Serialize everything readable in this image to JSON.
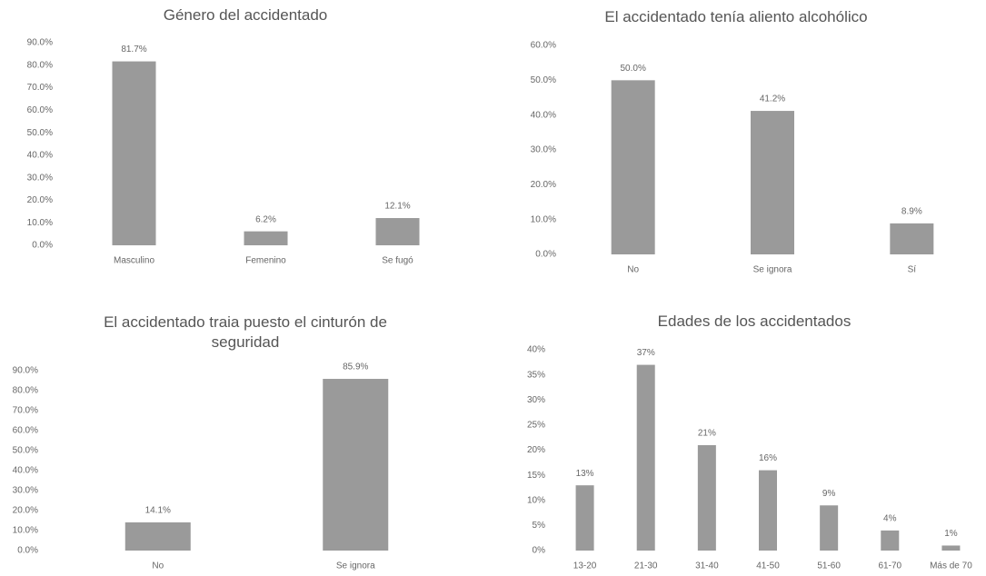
{
  "chart_data": [
    {
      "type": "bar",
      "title": "Género del accidentado",
      "categories": [
        "Masculino",
        "Femenino",
        "Se fugó"
      ],
      "values": [
        81.7,
        6.2,
        12.1
      ],
      "value_labels": [
        "81.7%",
        "6.2%",
        "12.1%"
      ],
      "color": "#9a9a9a",
      "ylim": [
        0,
        90
      ],
      "yticks": [
        {
          "value": 0,
          "label": "0.0%"
        },
        {
          "value": 10,
          "label": "10.0%"
        },
        {
          "value": 20,
          "label": "20.0%"
        },
        {
          "value": 30,
          "label": "30.0%"
        },
        {
          "value": 40,
          "label": "40.0%"
        },
        {
          "value": 50,
          "label": "50.0%"
        },
        {
          "value": 60,
          "label": "60.0%"
        },
        {
          "value": 70,
          "label": "70.0%"
        },
        {
          "value": 80,
          "label": "80.0%"
        },
        {
          "value": 90,
          "label": "90.0%"
        }
      ]
    },
    {
      "type": "bar",
      "title": "El accidentado tenía aliento alcohólico",
      "categories": [
        "No",
        "Se ignora",
        "Sí"
      ],
      "values": [
        50.0,
        41.2,
        8.9
      ],
      "value_labels": [
        "50.0%",
        "41.2%",
        "8.9%"
      ],
      "color": "#9a9a9a",
      "ylim": [
        0,
        60
      ],
      "yticks": [
        {
          "value": 0,
          "label": "0.0%"
        },
        {
          "value": 10,
          "label": "10.0%"
        },
        {
          "value": 20,
          "label": "20.0%"
        },
        {
          "value": 30,
          "label": "30.0%"
        },
        {
          "value": 40,
          "label": "40.0%"
        },
        {
          "value": 50,
          "label": "50.0%"
        },
        {
          "value": 60,
          "label": "60.0%"
        }
      ]
    },
    {
      "type": "bar",
      "title": "El accidentado traia puesto el cinturón de seguridad",
      "categories": [
        "No",
        "Se ignora"
      ],
      "values": [
        14.1,
        85.9
      ],
      "value_labels": [
        "14.1%",
        "85.9%"
      ],
      "color": "#9a9a9a",
      "ylim": [
        0,
        90
      ],
      "yticks": [
        {
          "value": 0,
          "label": "0.0%"
        },
        {
          "value": 10,
          "label": "10.0%"
        },
        {
          "value": 20,
          "label": "20.0%"
        },
        {
          "value": 30,
          "label": "30.0%"
        },
        {
          "value": 40,
          "label": "40.0%"
        },
        {
          "value": 50,
          "label": "50.0%"
        },
        {
          "value": 60,
          "label": "60.0%"
        },
        {
          "value": 70,
          "label": "70.0%"
        },
        {
          "value": 80,
          "label": "80.0%"
        },
        {
          "value": 90,
          "label": "90.0%"
        }
      ]
    },
    {
      "type": "bar",
      "title": "Edades de los accidentados",
      "categories": [
        "13-20",
        "21-30",
        "31-40",
        "41-50",
        "51-60",
        "61-70",
        "Más de 70"
      ],
      "values": [
        13,
        37,
        21,
        16,
        9,
        4,
        1
      ],
      "value_labels": [
        "13%",
        "37%",
        "21%",
        "16%",
        "9%",
        "4%",
        "1%"
      ],
      "color": "#9a9a9a",
      "ylim": [
        0,
        40
      ],
      "yticks": [
        {
          "value": 0,
          "label": "0%"
        },
        {
          "value": 5,
          "label": "5%"
        },
        {
          "value": 10,
          "label": "10%"
        },
        {
          "value": 15,
          "label": "15%"
        },
        {
          "value": 20,
          "label": "20%"
        },
        {
          "value": 25,
          "label": "25%"
        },
        {
          "value": 30,
          "label": "30%"
        },
        {
          "value": 35,
          "label": "35%"
        },
        {
          "value": 40,
          "label": "40%"
        }
      ]
    }
  ]
}
